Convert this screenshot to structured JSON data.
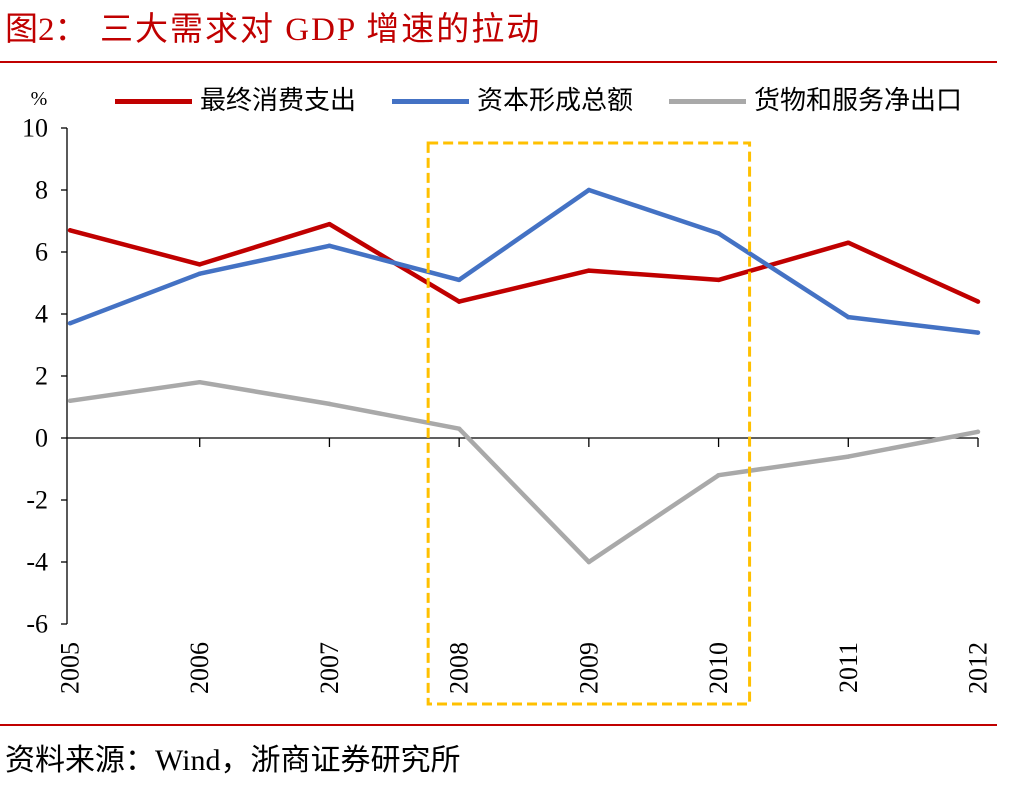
{
  "figure": {
    "label": "图2：",
    "source": "资料来源：Wind，浙商证券研究所",
    "accent_color": "#C00000"
  },
  "chart_data": {
    "type": "line",
    "title": "三大需求对 GDP 增速的拉动",
    "ylabel": "%",
    "ylim": [
      -6,
      10
    ],
    "yticks": [
      10,
      8,
      6,
      4,
      2,
      0,
      -2,
      -4,
      -6
    ],
    "categories": [
      "2005",
      "2006",
      "2007",
      "2008",
      "2009",
      "2010",
      "2011",
      "2012"
    ],
    "series": [
      {
        "name": "最终消费支出",
        "color": "#C00000",
        "values": [
          6.7,
          5.6,
          6.9,
          4.4,
          5.4,
          5.1,
          6.3,
          4.4
        ]
      },
      {
        "name": "资本形成总额",
        "color": "#4472C4",
        "values": [
          3.7,
          5.3,
          6.2,
          5.1,
          8.0,
          6.6,
          3.9,
          3.4
        ]
      },
      {
        "name": "货物和服务净出口",
        "color": "#A9A9A9",
        "values": [
          1.2,
          1.8,
          1.1,
          0.3,
          -4.0,
          -1.2,
          -0.6,
          0.2
        ]
      }
    ],
    "legend": "top",
    "grid": false,
    "highlight": {
      "from": 2008,
      "to": 2010,
      "color": "#FFC000"
    }
  }
}
